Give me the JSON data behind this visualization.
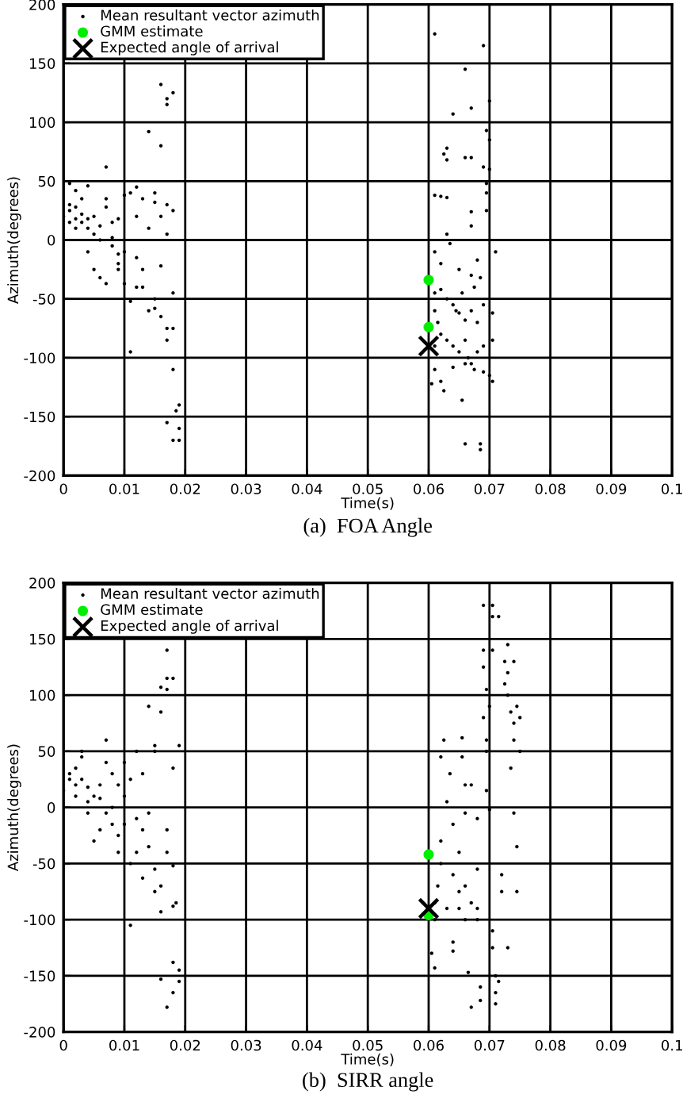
{
  "chart_data": [
    {
      "type": "scatter",
      "title": "(a)  FOA Angle",
      "xlabel": "Time(s)",
      "ylabel": "Azimuth(degrees)",
      "xlim": [
        0,
        0.1
      ],
      "ylim": [
        -200,
        200
      ],
      "xticks": [
        0,
        0.01,
        0.02,
        0.03,
        0.04,
        0.05,
        0.06,
        0.07,
        0.08,
        0.09,
        0.1
      ],
      "yticks": [
        -200,
        -150,
        -100,
        -50,
        0,
        50,
        100,
        150,
        200
      ],
      "grid": true,
      "legend": "top left",
      "series": [
        {
          "name": "Mean resultant vector azimuth",
          "color": "#000000",
          "marker": "circle",
          "x": [
            0.001,
            0.002,
            0.004,
            0.0,
            0.001,
            0.001,
            0.002,
            0.002,
            0.003,
            0.003,
            0.004,
            0.004,
            0.005,
            0.005,
            0.006,
            0.006,
            0.007,
            0.007,
            0.007,
            0.008,
            0.008,
            0.008,
            0.009,
            0.009,
            0.009,
            0.01,
            0.01,
            0.01,
            0.011,
            0.011,
            0.011,
            0.01,
            0.007,
            0.006,
            0.012,
            0.012,
            0.012,
            0.013,
            0.013,
            0.013,
            0.014,
            0.014,
            0.014,
            0.015,
            0.015,
            0.015,
            0.015,
            0.016,
            0.016,
            0.016,
            0.016,
            0.017,
            0.017,
            0.017,
            0.017,
            0.017,
            0.017,
            0.017,
            0.018,
            0.018,
            0.018,
            0.018,
            0.018,
            0.018,
            0.019,
            0.019,
            0.019,
            0.0185,
            0.003,
            0.004,
            0.002,
            0.005,
            0.009,
            0.012,
            0.016,
            0.001,
            0.061,
            0.069,
            0.066,
            0.067,
            0.07,
            0.064,
            0.0695,
            0.07,
            0.063,
            0.0625,
            0.063,
            0.066,
            0.067,
            0.069,
            0.07,
            0.0695,
            0.0695,
            0.061,
            0.062,
            0.063,
            0.0695,
            0.067,
            0.067,
            0.063,
            0.0635,
            0.061,
            0.071,
            0.062,
            0.065,
            0.068,
            0.067,
            0.0685,
            0.061,
            0.062,
            0.063,
            0.064,
            0.0645,
            0.065,
            0.066,
            0.067,
            0.068,
            0.0705,
            0.061,
            0.062,
            0.063,
            0.064,
            0.065,
            0.066,
            0.0665,
            0.067,
            0.068,
            0.069,
            0.0705,
            0.0705,
            0.07,
            0.061,
            0.0605,
            0.062,
            0.0625,
            0.064,
            0.066,
            0.0675,
            0.069,
            0.0655,
            0.066,
            0.0685,
            0.0685,
            0.061,
            0.0615,
            0.0655,
            0.0675,
            0.069
          ],
          "values": [
            48,
            42,
            46,
            20,
            25,
            30,
            18,
            28,
            22,
            15,
            10,
            18,
            20,
            5,
            12,
            0,
            62,
            35,
            28,
            2,
            15,
            -5,
            -12,
            18,
            -20,
            0,
            38,
            -10,
            40,
            -52,
            -95,
            -37,
            -37,
            -32,
            45,
            20,
            -15,
            35,
            -25,
            -40,
            10,
            -60,
            92,
            -50,
            40,
            -58,
            32,
            132,
            80,
            20,
            -22,
            120,
            115,
            -75,
            -85,
            -155,
            30,
            5,
            125,
            -110,
            -170,
            -45,
            25,
            -75,
            -140,
            -160,
            -170,
            -145,
            35,
            -10,
            10,
            -25,
            -25,
            -40,
            -65,
            15,
            175,
            165,
            145,
            112,
            118,
            107,
            93,
            85,
            78,
            73,
            68,
            70,
            70,
            62,
            60,
            48,
            40,
            38,
            37,
            36,
            25,
            24,
            12,
            5,
            -3,
            -10,
            -10,
            -20,
            -25,
            -17,
            -30,
            -32,
            -45,
            -42,
            -50,
            -55,
            -60,
            -62,
            -68,
            -60,
            -70,
            -62,
            -60,
            -80,
            -85,
            -90,
            -95,
            -85,
            -100,
            -105,
            -95,
            -90,
            -85,
            -120,
            -115,
            -110,
            -122,
            -120,
            -128,
            -108,
            -105,
            -110,
            -112,
            -136,
            -173,
            -173,
            -178,
            -90,
            -70,
            -45,
            -40,
            -55
          ]
        },
        {
          "name": "GMM estimate",
          "color": "#00ee00",
          "marker": "circle",
          "x": [
            0.06,
            0.06
          ],
          "values": [
            -34,
            -74
          ]
        },
        {
          "name": "Expected angle of arrival",
          "color": "#000000",
          "marker": "cross",
          "x": [
            0.06
          ],
          "values": [
            -90
          ]
        }
      ]
    },
    {
      "type": "scatter",
      "title": "(b)  SIRR angle",
      "xlabel": "Time(s)",
      "ylabel": "Azimuth(degrees)",
      "xlim": [
        0,
        0.1
      ],
      "ylim": [
        -200,
        200
      ],
      "xticks": [
        0,
        0.01,
        0.02,
        0.03,
        0.04,
        0.05,
        0.06,
        0.07,
        0.08,
        0.09,
        0.1
      ],
      "yticks": [
        -200,
        -150,
        -100,
        -50,
        0,
        50,
        100,
        150,
        200
      ],
      "grid": true,
      "legend": "top left",
      "series": [
        {
          "name": "Mean resultant vector azimuth",
          "color": "#000000",
          "marker": "circle",
          "x": [
            0.0,
            0.001,
            0.001,
            0.002,
            0.002,
            0.003,
            0.003,
            0.003,
            0.004,
            0.004,
            0.005,
            0.005,
            0.006,
            0.006,
            0.007,
            0.007,
            0.007,
            0.008,
            0.008,
            0.009,
            0.009,
            0.009,
            0.01,
            0.01,
            0.01,
            0.011,
            0.011,
            0.012,
            0.012,
            0.012,
            0.013,
            0.013,
            0.013,
            0.014,
            0.014,
            0.014,
            0.015,
            0.015,
            0.015,
            0.015,
            0.016,
            0.016,
            0.016,
            0.016,
            0.016,
            0.017,
            0.017,
            0.017,
            0.017,
            0.017,
            0.017,
            0.018,
            0.018,
            0.018,
            0.018,
            0.018,
            0.018,
            0.019,
            0.019,
            0.019,
            0.0185,
            0.004,
            0.006,
            0.008,
            0.011,
            0.002,
            0.061,
            0.0605,
            0.061,
            0.061,
            0.0615,
            0.062,
            0.062,
            0.0625,
            0.062,
            0.063,
            0.0635,
            0.064,
            0.064,
            0.064,
            0.064,
            0.065,
            0.065,
            0.0655,
            0.0655,
            0.066,
            0.066,
            0.066,
            0.0665,
            0.067,
            0.067,
            0.067,
            0.068,
            0.068,
            0.068,
            0.068,
            0.0685,
            0.0685,
            0.069,
            0.069,
            0.069,
            0.0695,
            0.069,
            0.0695,
            0.0695,
            0.0695,
            0.07,
            0.0705,
            0.0705,
            0.0705,
            0.07,
            0.0705,
            0.0705,
            0.071,
            0.071,
            0.071,
            0.0715,
            0.072,
            0.072,
            0.0725,
            0.0725,
            0.073,
            0.073,
            0.073,
            0.073,
            0.0735,
            0.0735,
            0.074,
            0.074,
            0.074,
            0.0745,
            0.0745,
            0.0745,
            0.075,
            0.075,
            0.074,
            0.0715,
            0.063,
            0.065,
            0.066
          ],
          "values": [
            15,
            25,
            30,
            35,
            20,
            50,
            45,
            25,
            18,
            5,
            10,
            -30,
            8,
            20,
            60,
            40,
            -5,
            30,
            -15,
            20,
            -25,
            -40,
            -15,
            40,
            10,
            -105,
            25,
            50,
            -10,
            -40,
            -20,
            -63,
            30,
            90,
            -5,
            -35,
            55,
            -55,
            -75,
            50,
            107,
            85,
            -70,
            -93,
            -153,
            140,
            115,
            105,
            -20,
            -40,
            -178,
            115,
            -138,
            -165,
            -88,
            35,
            -52,
            55,
            -145,
            -155,
            -85,
            -5,
            -20,
            0,
            -50,
            10,
            -143,
            -130,
            -100,
            -85,
            -70,
            -50,
            -30,
            60,
            45,
            5,
            30,
            -15,
            -60,
            -120,
            -128,
            -40,
            -75,
            62,
            45,
            20,
            -5,
            -100,
            -147,
            -178,
            -85,
            20,
            -55,
            -90,
            -100,
            -10,
            -160,
            -172,
            180,
            140,
            125,
            105,
            80,
            60,
            50,
            15,
            -2,
            140,
            170,
            180,
            90,
            -110,
            -125,
            -150,
            -165,
            -175,
            -155,
            -60,
            -75,
            130,
            110,
            145,
            100,
            120,
            -125,
            35,
            85,
            130,
            75,
            60,
            -35,
            -75,
            90,
            80,
            50,
            -5,
            170,
            -90,
            -90,
            -70
          ]
        },
        {
          "name": "GMM estimate",
          "color": "#00ee00",
          "marker": "circle",
          "x": [
            0.06,
            0.06
          ],
          "values": [
            -42,
            -96
          ]
        },
        {
          "name": "Expected angle of arrival",
          "color": "#000000",
          "marker": "cross",
          "x": [
            0.06
          ],
          "values": [
            -90
          ]
        }
      ]
    }
  ]
}
